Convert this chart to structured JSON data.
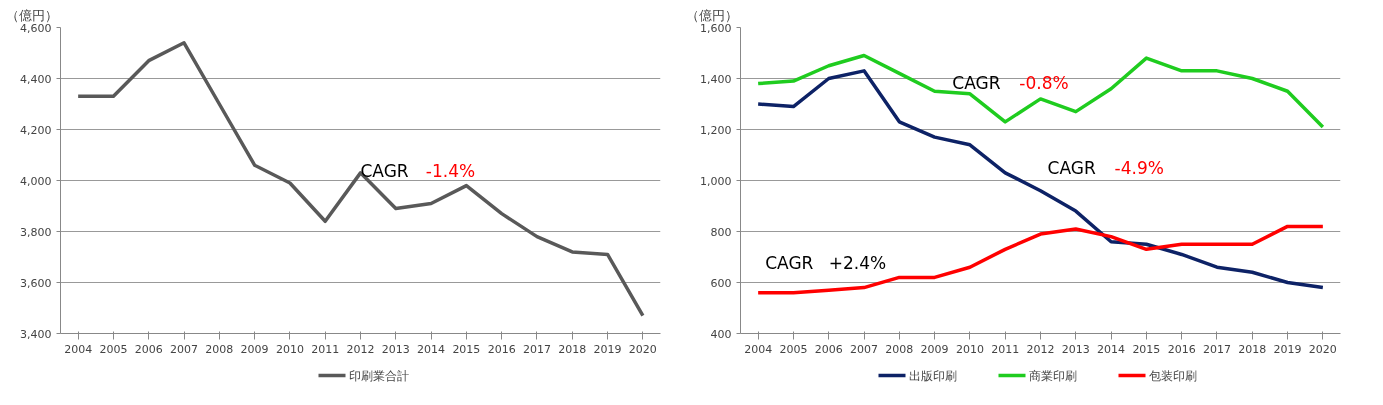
{
  "chart_data": [
    {
      "type": "line",
      "ylabel": "（億円）",
      "categories": [
        "2004",
        "2005",
        "2006",
        "2007",
        "2008",
        "2009",
        "2010",
        "2011",
        "2012",
        "2013",
        "2014",
        "2015",
        "2016",
        "2017",
        "2018",
        "2019",
        "2020"
      ],
      "series": [
        {
          "name": "印刷業合計",
          "color": "#595959",
          "values": [
            4330,
            4330,
            4470,
            4540,
            4300,
            4060,
            3990,
            3840,
            4030,
            3890,
            3910,
            3980,
            3870,
            3780,
            3720,
            3710,
            3470
          ]
        }
      ],
      "ylim": [
        3400,
        4600
      ],
      "yticks": [
        {
          "value": 3400,
          "label": "3,400"
        },
        {
          "value": 3600,
          "label": "3,600"
        },
        {
          "value": 3800,
          "label": "3,800"
        },
        {
          "value": 4000,
          "label": "4,000"
        },
        {
          "value": 4200,
          "label": "4,200"
        },
        {
          "value": 4400,
          "label": "4,400"
        },
        {
          "value": 4600,
          "label": "4,600"
        }
      ],
      "annotations": [
        "CAGR",
        "-1.4%"
      ],
      "grid": "y",
      "legend": "bottom",
      "marker": "none",
      "line_style": "solid"
    },
    {
      "type": "line",
      "ylabel": "（億円）",
      "categories": [
        "2004",
        "2005",
        "2006",
        "2007",
        "2008",
        "2009",
        "2010",
        "2011",
        "2012",
        "2013",
        "2014",
        "2015",
        "2016",
        "2017",
        "2018",
        "2019",
        "2020"
      ],
      "series": [
        {
          "name": "出版印刷",
          "color": "#0d2266",
          "values": [
            1300,
            1290,
            1400,
            1430,
            1230,
            1170,
            1140,
            1030,
            960,
            880,
            760,
            750,
            710,
            660,
            640,
            600,
            580
          ]
        },
        {
          "name": "商業印刷",
          "color": "#1fcc1f",
          "values": [
            1380,
            1390,
            1450,
            1490,
            1420,
            1350,
            1340,
            1230,
            1320,
            1270,
            1360,
            1480,
            1430,
            1430,
            1400,
            1350,
            1210
          ]
        },
        {
          "name": "包装印刷",
          "color": "#ff0000",
          "values": [
            560,
            560,
            570,
            580,
            620,
            620,
            660,
            730,
            790,
            810,
            780,
            730,
            750,
            750,
            750,
            820,
            820
          ]
        }
      ],
      "ylim": [
        400,
        1600
      ],
      "yticks": [
        400,
        600,
        800,
        {
          "value": 1000,
          "label": "1,000"
        },
        {
          "value": 1200,
          "label": "1,200"
        },
        {
          "value": 1400,
          "label": "1,400"
        },
        {
          "value": 1600,
          "label": "1,600"
        }
      ],
      "annotations": [
        "CAGR",
        "-0.8%",
        "CAGR",
        "-4.9%",
        "CAGR",
        "+2.4%"
      ],
      "grid": "y",
      "legend": "bottom",
      "marker": "none",
      "line_style": "solid"
    }
  ]
}
